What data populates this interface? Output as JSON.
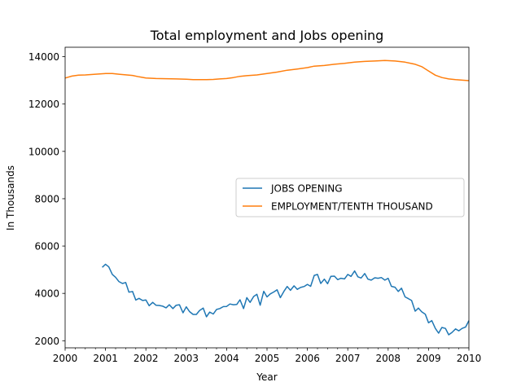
{
  "chart_data": {
    "type": "line",
    "title": "Total employment and Jobs opening",
    "xlabel": "Year",
    "ylabel": "In Thousands",
    "xlim": [
      2000,
      2010
    ],
    "ylim": [
      1700,
      14400
    ],
    "x_ticks": [
      "2000",
      "2001",
      "2002",
      "2003",
      "2004",
      "2005",
      "2006",
      "2007",
      "2008",
      "2009",
      "2010"
    ],
    "y_ticks": [
      "2000",
      "4000",
      "6000",
      "8000",
      "10000",
      "12000",
      "14000"
    ],
    "legend_position": "center-right",
    "grid": false,
    "series": [
      {
        "name": "JOBS OPENING",
        "color": "#1f77b4",
        "points": [
          [
            2000.92,
            5100
          ],
          [
            2001.0,
            5230
          ],
          [
            2001.08,
            5120
          ],
          [
            2001.17,
            4800
          ],
          [
            2001.25,
            4680
          ],
          [
            2001.33,
            4500
          ],
          [
            2001.42,
            4420
          ],
          [
            2001.5,
            4460
          ],
          [
            2001.58,
            4050
          ],
          [
            2001.67,
            4080
          ],
          [
            2001.75,
            3720
          ],
          [
            2001.83,
            3790
          ],
          [
            2001.92,
            3700
          ],
          [
            2002.0,
            3720
          ],
          [
            2002.08,
            3480
          ],
          [
            2002.17,
            3620
          ],
          [
            2002.25,
            3500
          ],
          [
            2002.33,
            3490
          ],
          [
            2002.42,
            3460
          ],
          [
            2002.5,
            3390
          ],
          [
            2002.58,
            3520
          ],
          [
            2002.67,
            3360
          ],
          [
            2002.75,
            3500
          ],
          [
            2002.83,
            3520
          ],
          [
            2002.92,
            3180
          ],
          [
            2003.0,
            3430
          ],
          [
            2003.08,
            3230
          ],
          [
            2003.17,
            3110
          ],
          [
            2003.25,
            3110
          ],
          [
            2003.33,
            3280
          ],
          [
            2003.42,
            3380
          ],
          [
            2003.5,
            3010
          ],
          [
            2003.58,
            3210
          ],
          [
            2003.67,
            3130
          ],
          [
            2003.75,
            3320
          ],
          [
            2003.83,
            3360
          ],
          [
            2003.92,
            3440
          ],
          [
            2004.0,
            3450
          ],
          [
            2004.08,
            3550
          ],
          [
            2004.17,
            3520
          ],
          [
            2004.25,
            3530
          ],
          [
            2004.33,
            3730
          ],
          [
            2004.42,
            3360
          ],
          [
            2004.5,
            3820
          ],
          [
            2004.58,
            3620
          ],
          [
            2004.67,
            3870
          ],
          [
            2004.75,
            3960
          ],
          [
            2004.83,
            3500
          ],
          [
            2004.92,
            4090
          ],
          [
            2005.0,
            3850
          ],
          [
            2005.08,
            3980
          ],
          [
            2005.17,
            4060
          ],
          [
            2005.25,
            4150
          ],
          [
            2005.33,
            3820
          ],
          [
            2005.42,
            4090
          ],
          [
            2005.5,
            4290
          ],
          [
            2005.58,
            4130
          ],
          [
            2005.67,
            4320
          ],
          [
            2005.75,
            4170
          ],
          [
            2005.83,
            4250
          ],
          [
            2005.92,
            4290
          ],
          [
            2006.0,
            4380
          ],
          [
            2006.08,
            4300
          ],
          [
            2006.17,
            4760
          ],
          [
            2006.25,
            4800
          ],
          [
            2006.33,
            4420
          ],
          [
            2006.42,
            4600
          ],
          [
            2006.5,
            4410
          ],
          [
            2006.58,
            4720
          ],
          [
            2006.67,
            4730
          ],
          [
            2006.75,
            4580
          ],
          [
            2006.83,
            4640
          ],
          [
            2006.92,
            4610
          ],
          [
            2007.0,
            4800
          ],
          [
            2007.08,
            4720
          ],
          [
            2007.17,
            4950
          ],
          [
            2007.25,
            4700
          ],
          [
            2007.33,
            4650
          ],
          [
            2007.42,
            4840
          ],
          [
            2007.5,
            4600
          ],
          [
            2007.58,
            4560
          ],
          [
            2007.67,
            4660
          ],
          [
            2007.75,
            4640
          ],
          [
            2007.83,
            4670
          ],
          [
            2007.92,
            4560
          ],
          [
            2008.0,
            4640
          ],
          [
            2008.08,
            4300
          ],
          [
            2008.17,
            4260
          ],
          [
            2008.25,
            4080
          ],
          [
            2008.33,
            4220
          ],
          [
            2008.42,
            3850
          ],
          [
            2008.5,
            3780
          ],
          [
            2008.58,
            3700
          ],
          [
            2008.67,
            3250
          ],
          [
            2008.75,
            3380
          ],
          [
            2008.83,
            3220
          ],
          [
            2008.92,
            3120
          ],
          [
            2009.0,
            2760
          ],
          [
            2009.08,
            2850
          ],
          [
            2009.17,
            2520
          ],
          [
            2009.25,
            2320
          ],
          [
            2009.33,
            2560
          ],
          [
            2009.42,
            2520
          ],
          [
            2009.5,
            2250
          ],
          [
            2009.58,
            2350
          ],
          [
            2009.67,
            2500
          ],
          [
            2009.75,
            2420
          ],
          [
            2009.83,
            2520
          ],
          [
            2009.92,
            2580
          ],
          [
            2010.0,
            2850
          ]
        ]
      },
      {
        "name": "EMPLOYMENT/TENTH THOUSAND",
        "color": "#ff7f0e",
        "points": [
          [
            2000.0,
            13100
          ],
          [
            2000.17,
            13180
          ],
          [
            2000.33,
            13220
          ],
          [
            2000.5,
            13230
          ],
          [
            2000.75,
            13260
          ],
          [
            2001.0,
            13290
          ],
          [
            2001.17,
            13290
          ],
          [
            2001.33,
            13260
          ],
          [
            2001.67,
            13210
          ],
          [
            2001.83,
            13150
          ],
          [
            2002.0,
            13100
          ],
          [
            2002.25,
            13080
          ],
          [
            2002.5,
            13070
          ],
          [
            2002.75,
            13060
          ],
          [
            2003.0,
            13050
          ],
          [
            2003.17,
            13030
          ],
          [
            2003.5,
            13030
          ],
          [
            2003.67,
            13040
          ],
          [
            2003.83,
            13060
          ],
          [
            2004.0,
            13080
          ],
          [
            2004.17,
            13120
          ],
          [
            2004.33,
            13170
          ],
          [
            2004.5,
            13200
          ],
          [
            2004.75,
            13230
          ],
          [
            2005.0,
            13290
          ],
          [
            2005.25,
            13350
          ],
          [
            2005.5,
            13430
          ],
          [
            2005.75,
            13480
          ],
          [
            2006.0,
            13540
          ],
          [
            2006.17,
            13600
          ],
          [
            2006.42,
            13630
          ],
          [
            2006.67,
            13680
          ],
          [
            2006.92,
            13720
          ],
          [
            2007.17,
            13770
          ],
          [
            2007.42,
            13800
          ],
          [
            2007.67,
            13820
          ],
          [
            2007.92,
            13840
          ],
          [
            2008.17,
            13820
          ],
          [
            2008.42,
            13770
          ],
          [
            2008.67,
            13680
          ],
          [
            2008.83,
            13580
          ],
          [
            2009.0,
            13400
          ],
          [
            2009.17,
            13220
          ],
          [
            2009.33,
            13120
          ],
          [
            2009.5,
            13060
          ],
          [
            2009.67,
            13030
          ],
          [
            2009.83,
            13010
          ],
          [
            2010.0,
            12990
          ]
        ]
      }
    ]
  }
}
